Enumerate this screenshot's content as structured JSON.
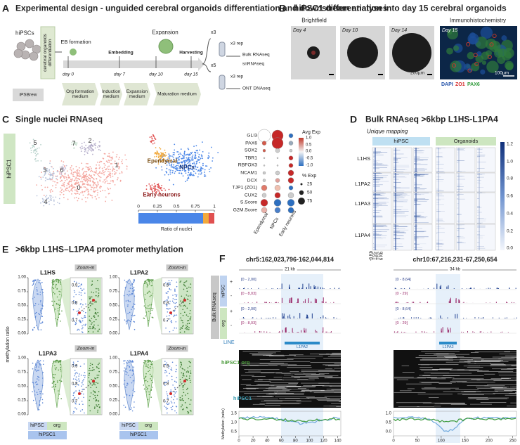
{
  "panel_a": {
    "letter": "A",
    "title": "Experimental design - unguided cerebral organoids differentiation and downstream analyses",
    "start_cells": "hiPSCs",
    "protocol": "cerebral organoids differentiation",
    "steps": [
      "EB formation",
      "Embedding",
      "Expansion",
      "Harvesting"
    ],
    "days": [
      "day 0",
      "day 7",
      "day 10",
      "day 15"
    ],
    "media": [
      "iPSBrew",
      "Org formation medium",
      "Induction medium",
      "Expansion medium",
      "Maturation medium"
    ],
    "outputs": [
      {
        "count": "x3",
        "replicates": "x3 rep",
        "assays": [
          "Bulk RNAseq",
          "snRNAseq"
        ]
      },
      {
        "count": "x5",
        "replicates": "x3 rep",
        "assays": [
          "ONT DNAseq"
        ]
      }
    ]
  },
  "panel_b": {
    "letter": "B",
    "title": "hiPSC1 differentiation into day 15 cerebral organoids",
    "brightfield": "Brightfield",
    "days": [
      "Day 4",
      "Day 10",
      "Day 14"
    ],
    "scale_bar": "200µm",
    "ihc": "Immunohistochemistry",
    "ihc_day": "Day 15",
    "ihc_scale_bar": "100µm",
    "stains": [
      {
        "name": "DAPI",
        "color": "#1f4fa8"
      },
      {
        "name": "ZO1",
        "color": "#d42a2a"
      },
      {
        "name": "PAX6",
        "color": "#2f9a3a"
      }
    ]
  },
  "panel_c": {
    "letter": "C",
    "title": "Single nuclei RNAseq",
    "sample": "hiPSC1",
    "clusters": [
      "0",
      "1",
      "2",
      "3",
      "4",
      "5",
      "6",
      "7"
    ],
    "cell_types": [
      "Ependymal",
      "NPCs",
      "Early neurons"
    ],
    "ratio_ticks": [
      "0",
      "0.25",
      "0.5",
      "0.75",
      "1"
    ],
    "ratio_label": "Ratio of nuclei",
    "genes": [
      "GLI3",
      "PAX6",
      "SOX2",
      "TBR1",
      "RBFOX3",
      "NCAM1",
      "DCX",
      "TJP1 (ZO1)",
      "CUX2",
      "S.Score",
      "G2M.Score"
    ],
    "avg_exp_title": "Avg Exp",
    "avg_exp_ticks": [
      "1.0",
      "0.5",
      "0.0",
      "-0.5",
      "-1.0"
    ],
    "pct_exp_title": "% Exp",
    "pct_exp_ticks": [
      "25",
      "50",
      "75"
    ]
  },
  "panel_d": {
    "letter": "D",
    "title": "Bulk RNAseq >6kbp L1HS-L1PA4",
    "subtitle": "Unique mapping",
    "groups": [
      "hiPSC",
      "Organoids"
    ],
    "families": [
      "L1HS",
      "L1PA2",
      "L1PA3",
      "L1PA4"
    ],
    "colorbar_ticks": [
      "1.2",
      "1.0",
      "0.8",
      "0.6",
      "0.4",
      "0.2",
      "0.0"
    ],
    "x_labels": [
      "-6 Kb",
      "TSS",
      "TES",
      "6 Kb"
    ]
  },
  "panel_e": {
    "letter": "E",
    "title": ">6kbp L1HS–L1PA4  promoter methylation",
    "families": [
      "L1HS",
      "L1PA2",
      "L1PA3",
      "L1PA4"
    ],
    "zoom_label": "Zoom-in",
    "y_ticks": [
      "1.00",
      "0.75",
      "0.50",
      "0.25",
      "0.00"
    ],
    "zoom_ticks": [
      "0.9",
      "0.8",
      "0.7"
    ],
    "y_label": "methylation ratio",
    "conditions": [
      "hiPSC",
      "org"
    ],
    "sample": "hiPSC1"
  },
  "panel_f": {
    "letter": "F",
    "bulk_label": "Bulk RNAseq",
    "track_groups": [
      "hiPSC",
      "org"
    ],
    "strands": [
      "+",
      "-"
    ],
    "annotation_label": "LINE",
    "reads_labels": [
      "hiPSC1 org",
      "hiPSC1"
    ],
    "methylation_label": "Methylation (ratio)",
    "loci": [
      {
        "region": "chr5:162,023,796-162,044,814",
        "span": "21 kb",
        "ranges": [
          "[0 - 2,00]",
          "[0 - 8,03]",
          "[0 - 2,00]",
          "[0 - 8,03]"
        ],
        "element": "L1PA2",
        "x_ticks": [
          "0",
          "20",
          "40",
          "60",
          "80",
          "100",
          "120",
          "140"
        ],
        "y_ticks": [
          "1.5",
          "1.0",
          "0.5"
        ]
      },
      {
        "region": "chr10:67,216,231-67,250,654",
        "span": "34 kb",
        "ranges": [
          "[0 - 8,64]",
          "[0 - 29]",
          "[0 - 8,64]",
          "[0 - 29]"
        ],
        "element": "L1PA3",
        "x_ticks": [
          "0",
          "50",
          "100",
          "150",
          "200",
          "250"
        ],
        "y_ticks": [
          "1.0",
          "0.5",
          "0.0"
        ]
      }
    ]
  }
}
